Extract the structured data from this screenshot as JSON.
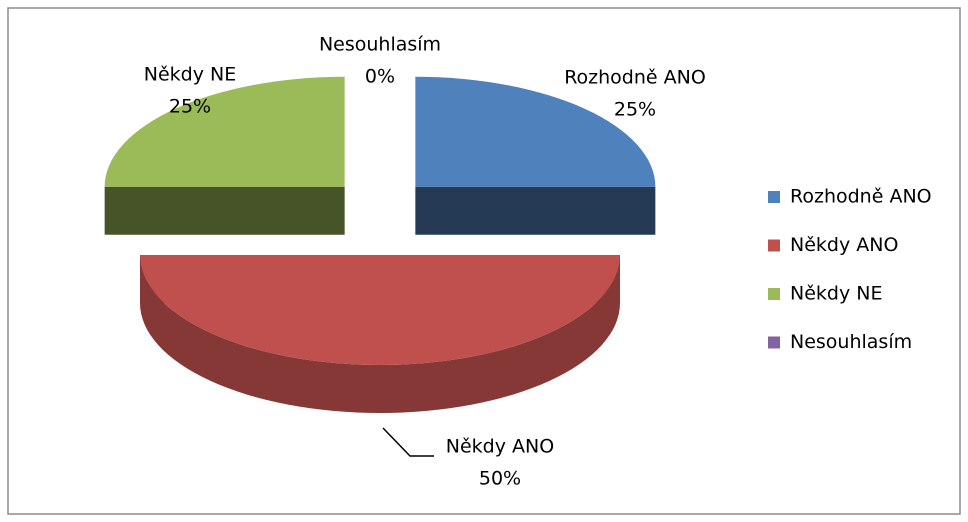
{
  "chart_data": {
    "type": "pie3d",
    "categories": [
      "Rozhodně ANO",
      "Někdy ANO",
      "Někdy NE",
      "Nesouhlasím"
    ],
    "values": [
      25,
      50,
      25,
      0
    ],
    "value_labels": [
      "25%",
      "50%",
      "25%",
      "0%"
    ],
    "colors": [
      "#4f81bd",
      "#c0504d",
      "#9bbb59",
      "#8064a2"
    ],
    "legend": "right"
  }
}
